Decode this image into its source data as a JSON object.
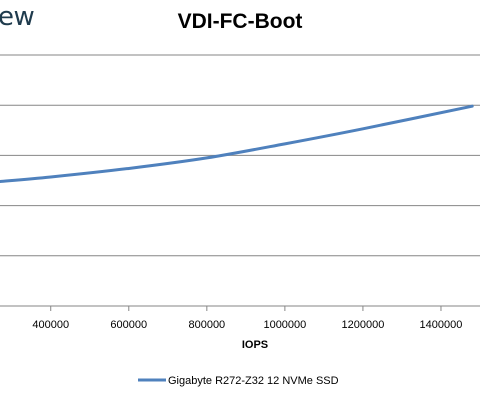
{
  "brand": {
    "text": "ew"
  },
  "chart_data": {
    "type": "line",
    "title": "VDI-FC-Boot",
    "xlabel": "IOPS",
    "ylabel": "",
    "x_ticks": [
      400000,
      600000,
      800000,
      1000000,
      1200000,
      1400000
    ],
    "x_tick_labels": [
      "400000",
      "600000",
      "800000",
      "1000000",
      "1200000",
      "1400000"
    ],
    "xlim": [
      270000,
      1500000
    ],
    "ylim": [
      0,
      5
    ],
    "grid": true,
    "legend": "bottom",
    "series": [
      {
        "name": "Gigabyte R272-Z32 12 NVMe SSD",
        "color": "#4f81bd",
        "x": [
          270000,
          400000,
          600000,
          800000,
          1000000,
          1200000,
          1480000
        ],
        "y": [
          2.48,
          2.57,
          2.74,
          2.95,
          3.23,
          3.53,
          3.98
        ]
      }
    ]
  }
}
